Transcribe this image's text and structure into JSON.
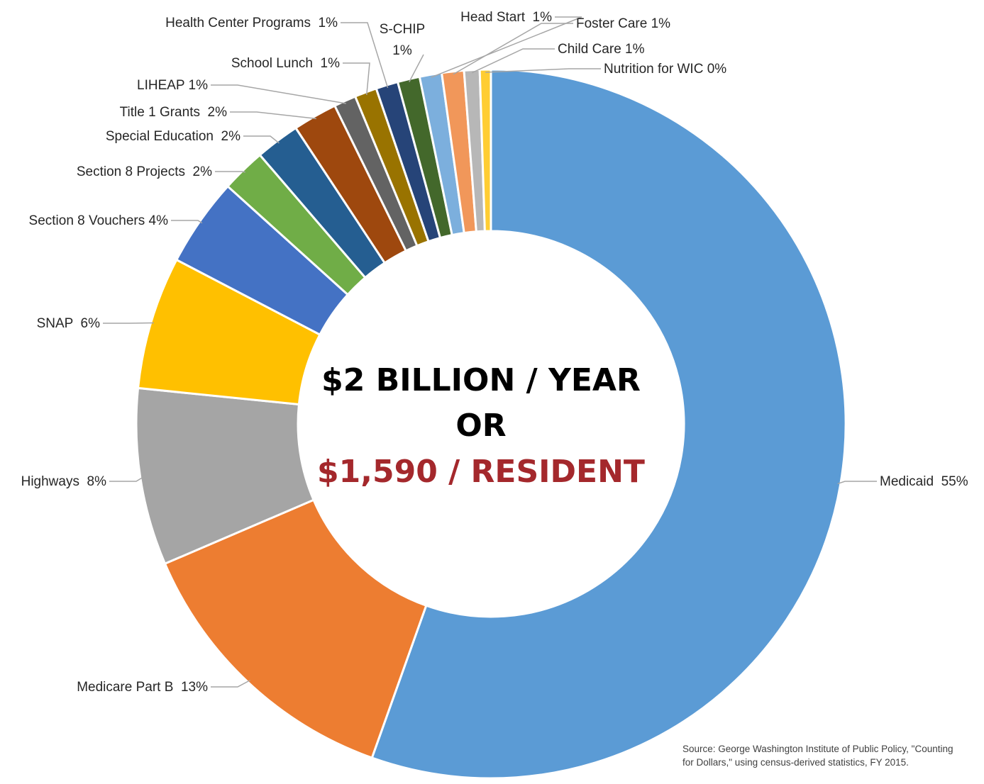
{
  "chart_data": {
    "type": "pie",
    "style": "donut",
    "title": "",
    "center_text": {
      "line1": "$2 BILLION / YEAR",
      "line2": "OR",
      "line3": "$1,590 / RESIDENT",
      "line3_color": "#a4282c"
    },
    "slices": [
      {
        "label": "Medicaid  55%",
        "value": 55,
        "color": "#5b9bd5"
      },
      {
        "label": "Medicare Part B  13%",
        "value": 13,
        "color": "#ed7d31"
      },
      {
        "label": "Highways  8%",
        "value": 8,
        "color": "#a5a5a5"
      },
      {
        "label": "SNAP  6%",
        "value": 6,
        "color": "#ffc000"
      },
      {
        "label": "Section 8 Vouchers 4%",
        "value": 4,
        "color": "#4472c4"
      },
      {
        "label": "Section 8 Projects  2%",
        "value": 2,
        "color": "#70ad47"
      },
      {
        "label": "Special Education  2%",
        "value": 2,
        "color": "#255e91"
      },
      {
        "label": "Title 1 Grants  2%",
        "value": 2,
        "color": "#9e480e"
      },
      {
        "label": "LIHEAP 1%",
        "value": 1,
        "color": "#636363"
      },
      {
        "label": "School Lunch  1%",
        "value": 1,
        "color": "#997300"
      },
      {
        "label": "Health Center Programs  1%",
        "value": 1,
        "color": "#264478"
      },
      {
        "label": [
          "S-CHIP",
          "1%"
        ],
        "value": 1,
        "color": "#43682b"
      },
      {
        "label": "Head Start  1%",
        "value": 1,
        "color": "#7cafdd"
      },
      {
        "label": "Foster Care 1%",
        "value": 1,
        "color": "#f1975a"
      },
      {
        "label": "Child Care 1%",
        "value": 0.7,
        "color": "#b7b7b7"
      },
      {
        "label": "Nutrition for WIC 0%",
        "value": 0.5,
        "color": "#ffcd33"
      }
    ]
  },
  "source": {
    "line1": "Source: George Washington Institute of Public Policy, \"Counting",
    "line2": "for Dollars,\" using census-derived statistics, FY 2015."
  }
}
